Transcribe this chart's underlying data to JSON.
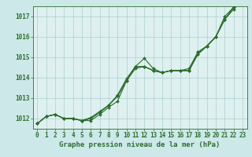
{
  "background_color": "#cce8e8",
  "plot_bg_color": "#dff0f0",
  "grid_color": "#aacfcf",
  "line_color": "#2d6e2d",
  "title": "Graphe pression niveau de la mer (hPa)",
  "title_fontsize": 6.5,
  "tick_fontsize": 5.5,
  "xlim": [
    -0.5,
    23.5
  ],
  "ylim": [
    1011.5,
    1017.5
  ],
  "yticks": [
    1012,
    1013,
    1014,
    1015,
    1016,
    1017
  ],
  "xticks": [
    0,
    1,
    2,
    3,
    4,
    5,
    6,
    7,
    8,
    9,
    10,
    11,
    12,
    13,
    14,
    15,
    16,
    17,
    18,
    19,
    20,
    21,
    22,
    23
  ],
  "series": [
    [
      1011.75,
      1012.1,
      1012.2,
      1012.0,
      1012.0,
      1011.9,
      1011.9,
      1012.2,
      1012.55,
      1012.85,
      1013.85,
      1014.55,
      1014.55,
      1014.35,
      1014.25,
      1014.35,
      1014.35,
      1014.35,
      1015.15,
      1015.55,
      1016.0,
      1016.85,
      1017.35
    ],
    [
      1011.75,
      1012.1,
      1012.2,
      1012.0,
      1012.0,
      1011.9,
      1012.0,
      1012.3,
      1012.65,
      1013.1,
      1013.85,
      1014.55,
      1014.95,
      1014.45,
      1014.25,
      1014.35,
      1014.35,
      1014.35,
      1015.15,
      1015.55,
      1016.0,
      1017.0,
      1017.45
    ],
    [
      1011.75,
      1012.1,
      1012.2,
      1012.0,
      1012.0,
      1011.9,
      1012.0,
      1012.3,
      1012.65,
      1013.1,
      1013.85,
      1014.45,
      1014.55,
      1014.35,
      1014.25,
      1014.35,
      1014.35,
      1014.35,
      1015.25,
      1015.55,
      1016.0,
      1016.85,
      1017.45
    ],
    [
      1011.75,
      1012.1,
      1012.2,
      1012.0,
      1012.0,
      1011.9,
      1012.05,
      1012.35,
      1012.65,
      1013.15,
      1013.95,
      1014.55,
      1014.55,
      1014.35,
      1014.25,
      1014.35,
      1014.35,
      1014.45,
      1015.25,
      1015.55,
      1016.0,
      1016.85,
      1017.45
    ]
  ],
  "marker": "D",
  "markersize": 2.0,
  "linewidth": 0.8
}
